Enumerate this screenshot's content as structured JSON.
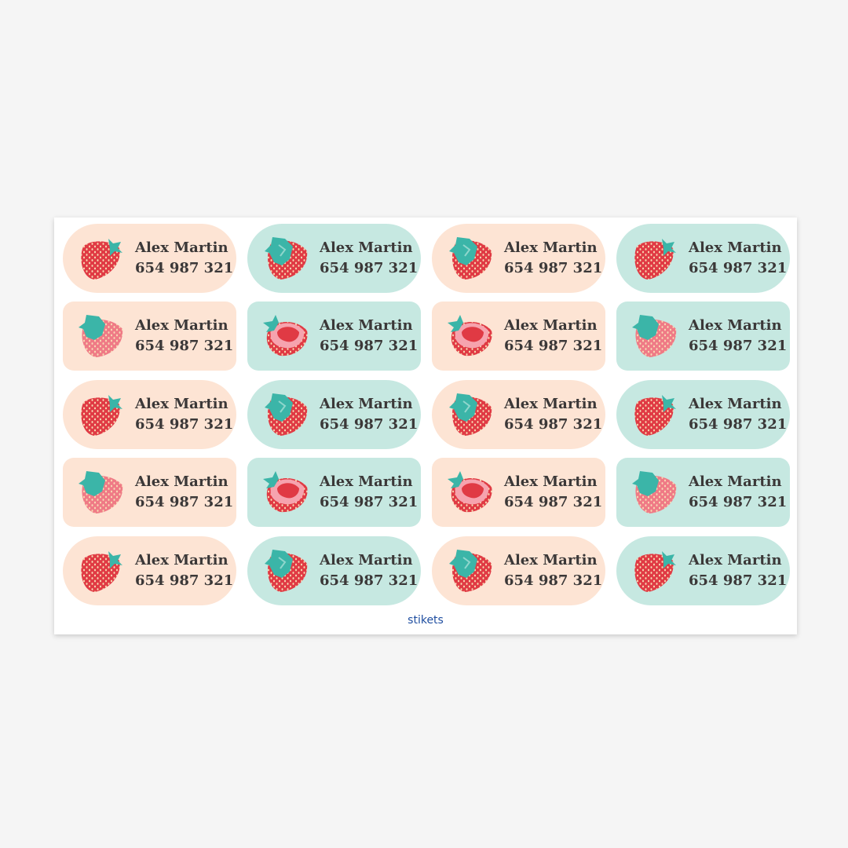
{
  "sheet": {
    "stickers": [
      {
        "name": "Alex Martin",
        "phone": "654 987 321"
      },
      {
        "name": "Alex Martin",
        "phone": "654 987 321"
      },
      {
        "name": "Alex Martin",
        "phone": "654 987 321"
      },
      {
        "name": "Alex Martin",
        "phone": "654 987 321"
      },
      {
        "name": "Alex Martin",
        "phone": "654 987 321"
      },
      {
        "name": "Alex Martin",
        "phone": "654 987 321"
      },
      {
        "name": "Alex Martin",
        "phone": "654 987 321"
      },
      {
        "name": "Alex Martin",
        "phone": "654 987 321"
      },
      {
        "name": "Alex Martin",
        "phone": "654 987 321"
      },
      {
        "name": "Alex Martin",
        "phone": "654 987 321"
      },
      {
        "name": "Alex Martin",
        "phone": "654 987 321"
      },
      {
        "name": "Alex Martin",
        "phone": "654 987 321"
      },
      {
        "name": "Alex Martin",
        "phone": "654 987 321"
      },
      {
        "name": "Alex Martin",
        "phone": "654 987 321"
      },
      {
        "name": "Alex Martin",
        "phone": "654 987 321"
      },
      {
        "name": "Alex Martin",
        "phone": "654 987 321"
      },
      {
        "name": "Alex Martin",
        "phone": "654 987 321"
      },
      {
        "name": "Alex Martin",
        "phone": "654 987 321"
      },
      {
        "name": "Alex Martin",
        "phone": "654 987 321"
      },
      {
        "name": "Alex Martin",
        "phone": "654 987 321"
      }
    ],
    "brand": "stikets"
  }
}
